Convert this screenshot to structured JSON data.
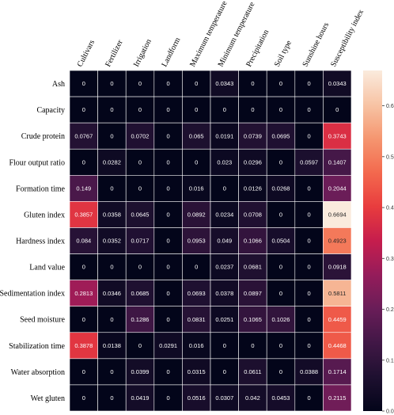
{
  "chart_data": {
    "type": "heatmap",
    "columns": [
      "Cultivars",
      "Fertilizer",
      "Irrigation",
      "Landform",
      "Maximum temperature",
      "Minimum temperature",
      "Precipitation",
      "Soil type",
      "Sunshine hours",
      "Susceptibility index"
    ],
    "rows": [
      "Ash",
      "Capacity",
      "Crude protein",
      "Flour output ratio",
      "Formation time",
      "Gluten index",
      "Hardness index",
      "Land value",
      "Sedimentation index",
      "Seed moisture",
      "Stabilization time",
      "Water absorption",
      "Wet gluten"
    ],
    "values": [
      [
        0,
        0,
        0,
        0,
        0,
        0.0343,
        0,
        0,
        0,
        0.0343
      ],
      [
        0,
        0,
        0,
        0,
        0,
        0,
        0,
        0,
        0,
        0
      ],
      [
        0.0767,
        0,
        0.0702,
        0,
        0.065,
        0.0191,
        0.0739,
        0.0695,
        0,
        0.3743
      ],
      [
        0,
        0.0282,
        0,
        0,
        0,
        0.023,
        0.0296,
        0,
        0.0597,
        0.1407
      ],
      [
        0.149,
        0,
        0,
        0,
        0.016,
        0,
        0.0126,
        0.0268,
        0,
        0.2044
      ],
      [
        0.3857,
        0.0358,
        0.0645,
        0,
        0.0892,
        0.0234,
        0.0708,
        0,
        0,
        0.6694
      ],
      [
        0.084,
        0.0352,
        0.0717,
        0,
        0.0953,
        0.049,
        0.1066,
        0.0504,
        0,
        0.4923
      ],
      [
        0,
        0,
        0,
        0,
        0,
        0.0237,
        0.0681,
        0,
        0,
        0.0918
      ],
      [
        0.2813,
        0.0346,
        0.0685,
        0,
        0.0693,
        0.0378,
        0.0897,
        0,
        0,
        0.5811
      ],
      [
        0,
        0,
        0.1286,
        0,
        0.0831,
        0.0251,
        0.1065,
        0.1026,
        0,
        0.4459
      ],
      [
        0.3878,
        0.0138,
        0,
        0.0291,
        0.016,
        0,
        0,
        0,
        0,
        0.4468
      ],
      [
        0,
        0,
        0.0399,
        0,
        0.0315,
        0,
        0.0611,
        0,
        0.0388,
        0.1714
      ],
      [
        0,
        0,
        0.0419,
        0,
        0.0516,
        0.0307,
        0.042,
        0.0453,
        0,
        0.2115
      ]
    ],
    "colorbar": {
      "min": 0,
      "max": 0.6694,
      "ticks": [
        "0.0",
        "0.1",
        "0.2",
        "0.3",
        "0.4",
        "0.5",
        "0.6"
      ],
      "colormap": "rocket"
    }
  }
}
